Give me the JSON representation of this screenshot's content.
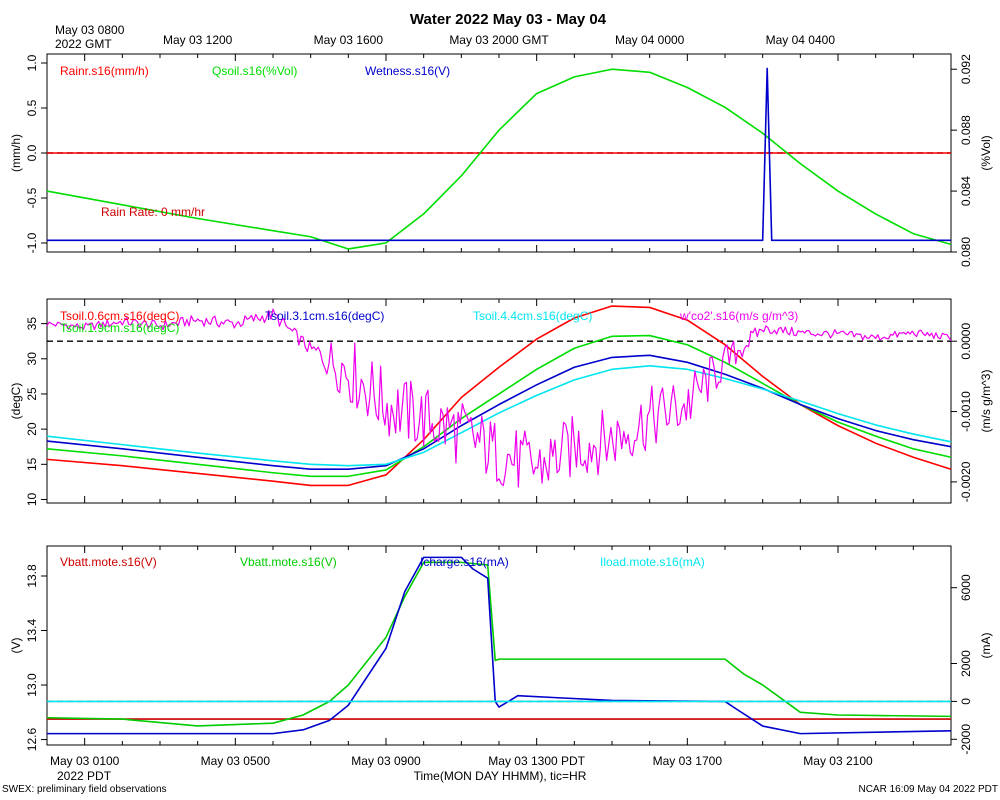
{
  "title": "Water 2022 May 03 - May 04",
  "x_axis": {
    "label": "Time(MON DAY HHMM), tic=HR",
    "top_start_label": [
      "May 03 0800",
      "2022 GMT"
    ],
    "top_ticks": [
      {
        "hour": 4,
        "label": "May 03 1200"
      },
      {
        "hour": 8,
        "label": "May 03 1600"
      },
      {
        "hour": 12,
        "label": "May 03 2000 GMT"
      },
      {
        "hour": 16,
        "label": "May 04 0000"
      },
      {
        "hour": 20,
        "label": "May 04 0400"
      }
    ],
    "bottom_start_label": "2022 PDT",
    "bottom_ticks": [
      {
        "hour": 1,
        "label": "May 03 0100"
      },
      {
        "hour": 5,
        "label": "May 03 0500"
      },
      {
        "hour": 9,
        "label": "May 03 0900"
      },
      {
        "hour": 13,
        "label": "May 03 1300 PDT"
      },
      {
        "hour": 17,
        "label": "May 03 1700"
      },
      {
        "hour": 21,
        "label": "May 03 2100"
      }
    ],
    "range_hours_pdt": [
      0,
      24
    ]
  },
  "footer": {
    "left": "SWEX: preliminary field observations",
    "right": "NCAR 16:09 May 04 2022 PDT"
  },
  "colors": {
    "red": "#ff0000",
    "green": "#00dd00",
    "blue": "#0000cc",
    "cyan": "#00e5ee",
    "magenta": "#ee00ee",
    "dark_red": "#cc0000",
    "mid_green": "#00cc00"
  },
  "chart_data": [
    {
      "type": "line",
      "panel": "top",
      "left_axis": {
        "label": "(mm/h)",
        "ticks": [
          "1.0",
          "0.5",
          "0.0",
          "-0.5",
          "-1.0"
        ],
        "range": [
          -1.1,
          1.1
        ]
      },
      "right_axis": {
        "label": "(%Vol)",
        "ticks": [
          "0.092",
          "0.088",
          "0.084",
          "0.080"
        ],
        "range": [
          0.08,
          0.093
        ]
      },
      "reference_line": 0.0,
      "annotation": "Rain Rate: 0 mm/hr",
      "series": [
        {
          "name": "Rainr.s16(mm/h)",
          "color": "red",
          "axis": "left",
          "points": [
            [
              0,
              0
            ],
            [
              24,
              0
            ]
          ]
        },
        {
          "name": "Qsoil.s16(%Vol)",
          "color": "green",
          "axis": "right",
          "points": [
            [
              0,
              0.084
            ],
            [
              2,
              0.0831
            ],
            [
              4,
              0.0822
            ],
            [
              6,
              0.0814
            ],
            [
              7,
              0.081
            ],
            [
              8,
              0.0802
            ],
            [
              9,
              0.0806
            ],
            [
              10,
              0.0825
            ],
            [
              11,
              0.085
            ],
            [
              12,
              0.088
            ],
            [
              13,
              0.0904
            ],
            [
              14,
              0.0915
            ],
            [
              15,
              0.092
            ],
            [
              16,
              0.0918
            ],
            [
              17,
              0.0908
            ],
            [
              18,
              0.0895
            ],
            [
              19,
              0.0878
            ],
            [
              20,
              0.0858
            ],
            [
              21,
              0.084
            ],
            [
              22,
              0.0825
            ],
            [
              23,
              0.0812
            ],
            [
              24,
              0.0805
            ]
          ]
        },
        {
          "name": "Wetness.s16(V)",
          "color": "blue",
          "axis": "left",
          "points": [
            [
              0,
              -0.97
            ],
            [
              19.0,
              -0.97
            ],
            [
              19.12,
              0.94
            ],
            [
              19.24,
              -0.97
            ],
            [
              24,
              -0.97
            ]
          ]
        }
      ]
    },
    {
      "type": "line",
      "panel": "middle",
      "left_axis": {
        "label": "(degC)",
        "ticks": [
          "35",
          "30",
          "25",
          "20",
          "15",
          "10"
        ],
        "range": [
          9.5,
          38.5
        ]
      },
      "right_axis": {
        "label": "(m/s g/m^3)",
        "ticks": [
          "0.0000",
          "-0.0010",
          "-0.0020"
        ],
        "range": [
          -0.0023,
          0.0006
        ]
      },
      "reference_line_right": 0.0,
      "series": [
        {
          "name": "Tsoil.0.6cm.s16(degC)",
          "color": "red",
          "axis": "left",
          "points": [
            [
              0,
              15.7
            ],
            [
              2,
              14.8
            ],
            [
              4,
              13.7
            ],
            [
              6,
              12.6
            ],
            [
              7,
              12.0
            ],
            [
              8,
              12.0
            ],
            [
              9,
              13.5
            ],
            [
              10,
              18.5
            ],
            [
              11,
              24.5
            ],
            [
              12,
              28.8
            ],
            [
              13,
              32.8
            ],
            [
              14,
              35.8
            ],
            [
              15,
              37.5
            ],
            [
              16,
              37.3
            ],
            [
              17,
              35.5
            ],
            [
              18,
              32.0
            ],
            [
              19,
              27.5
            ],
            [
              20,
              23.5
            ],
            [
              21,
              20.5
            ],
            [
              22,
              18.0
            ],
            [
              23,
              16.0
            ],
            [
              24,
              14.3
            ]
          ]
        },
        {
          "name": "Tsoil.1.9cm.s16(degC)",
          "color": "green",
          "axis": "left",
          "points": [
            [
              0,
              17.2
            ],
            [
              2,
              16.2
            ],
            [
              4,
              15.0
            ],
            [
              6,
              13.8
            ],
            [
              7,
              13.3
            ],
            [
              8,
              13.3
            ],
            [
              9,
              14.2
            ],
            [
              10,
              17.5
            ],
            [
              11,
              21.5
            ],
            [
              12,
              25.0
            ],
            [
              13,
              28.5
            ],
            [
              14,
              31.5
            ],
            [
              15,
              33.2
            ],
            [
              16,
              33.3
            ],
            [
              17,
              32.0
            ],
            [
              18,
              29.5
            ],
            [
              19,
              26.5
            ],
            [
              20,
              23.5
            ],
            [
              21,
              21.0
            ],
            [
              22,
              19.0
            ],
            [
              23,
              17.2
            ],
            [
              24,
              16.0
            ]
          ]
        },
        {
          "name": "Tsoil.3.1cm.s16(degC)",
          "color": "blue",
          "axis": "left",
          "points": [
            [
              0,
              18.3
            ],
            [
              2,
              17.2
            ],
            [
              4,
              16.0
            ],
            [
              6,
              14.8
            ],
            [
              7,
              14.3
            ],
            [
              8,
              14.3
            ],
            [
              9,
              14.8
            ],
            [
              10,
              17.2
            ],
            [
              11,
              20.5
            ],
            [
              12,
              23.5
            ],
            [
              13,
              26.3
            ],
            [
              14,
              28.8
            ],
            [
              15,
              30.2
            ],
            [
              16,
              30.5
            ],
            [
              17,
              29.5
            ],
            [
              18,
              27.8
            ],
            [
              19,
              25.8
            ],
            [
              20,
              23.5
            ],
            [
              21,
              21.5
            ],
            [
              22,
              19.8
            ],
            [
              23,
              18.5
            ],
            [
              24,
              17.5
            ]
          ]
        },
        {
          "name": "Tsoil.4.4cm.s16(degC)",
          "color": "cyan",
          "axis": "left",
          "points": [
            [
              0,
              19.0
            ],
            [
              2,
              17.8
            ],
            [
              4,
              16.6
            ],
            [
              6,
              15.5
            ],
            [
              7,
              15.0
            ],
            [
              8,
              14.8
            ],
            [
              9,
              15.0
            ],
            [
              10,
              16.7
            ],
            [
              11,
              19.5
            ],
            [
              12,
              22.3
            ],
            [
              13,
              24.8
            ],
            [
              14,
              27.0
            ],
            [
              15,
              28.5
            ],
            [
              16,
              29.0
            ],
            [
              17,
              28.5
            ],
            [
              18,
              27.2
            ],
            [
              19,
              25.7
            ],
            [
              20,
              24.0
            ],
            [
              21,
              22.2
            ],
            [
              22,
              20.6
            ],
            [
              23,
              19.3
            ],
            [
              24,
              18.2
            ]
          ]
        },
        {
          "name": "w'co2'.s16(m/s g/m^3)",
          "color": "magenta",
          "axis": "right",
          "points": [
            [
              0,
              0.00025
            ],
            [
              1,
              0.0002
            ],
            [
              2,
              0.00028
            ],
            [
              3,
              0.00022
            ],
            [
              4,
              0.0003
            ],
            [
              5,
              0.00025
            ],
            [
              6,
              0.00038
            ],
            [
              7,
              -0.00012
            ],
            [
              8,
              -0.0004
            ],
            [
              9,
              -0.0009
            ],
            [
              10,
              -0.0011
            ],
            [
              11,
              -0.0013
            ],
            [
              12,
              -0.0016
            ],
            [
              13,
              -0.0018
            ],
            [
              14,
              -0.0015
            ],
            [
              15,
              -0.0014
            ],
            [
              16,
              -0.0011
            ],
            [
              17,
              -0.0009
            ],
            [
              18,
              -0.0003
            ],
            [
              19,
              0.00018
            ],
            [
              20,
              0.00012
            ],
            [
              21,
              0.0001
            ],
            [
              22,
              5e-05
            ],
            [
              23,
              0.00012
            ],
            [
              24,
              5e-05
            ]
          ],
          "noise_envelope": [
            [
              0,
              5e-05
            ],
            [
              7,
              0.0001
            ],
            [
              8,
              0.0005
            ],
            [
              17,
              0.00045
            ],
            [
              19,
              7e-05
            ],
            [
              24,
              5e-05
            ]
          ]
        }
      ]
    },
    {
      "type": "line",
      "panel": "bottom",
      "left_axis": {
        "label": "(V)",
        "ticks": [
          "13.8",
          "13.4",
          "13.0",
          "12.6"
        ],
        "range": [
          12.56,
          14.02
        ]
      },
      "right_axis": {
        "label": "(mA)",
        "ticks": [
          "6000",
          "2000",
          "0",
          "-2000"
        ],
        "range": [
          -2300,
          8200
        ]
      },
      "reference_line_right": 0,
      "series": [
        {
          "name": "Vbatt.mote.s16(V)",
          "color": "dark_red",
          "axis": "left",
          "points": [
            [
              0,
              12.75
            ],
            [
              24,
              12.75
            ]
          ]
        },
        {
          "name": "Vbatt.mote.s16(V)",
          "color": "mid_green",
          "axis": "left",
          "points": [
            [
              0,
              12.76
            ],
            [
              2,
              12.75
            ],
            [
              4,
              12.7
            ],
            [
              6,
              12.72
            ],
            [
              6.8,
              12.78
            ],
            [
              7.5,
              12.88
            ],
            [
              8,
              13.0
            ],
            [
              9,
              13.35
            ],
            [
              9.5,
              13.65
            ],
            [
              10,
              13.9
            ],
            [
              11,
              13.9
            ],
            [
              11.7,
              13.88
            ],
            [
              11.9,
              13.18
            ],
            [
              12,
              13.19
            ],
            [
              16,
              13.19
            ],
            [
              17,
              13.19
            ],
            [
              18,
              13.19
            ],
            [
              18.5,
              13.08
            ],
            [
              19,
              13.0
            ],
            [
              20,
              12.8
            ],
            [
              21,
              12.78
            ],
            [
              24,
              12.77
            ]
          ]
        },
        {
          "name": "Icharge.s16(mA)",
          "color": "blue",
          "axis": "right",
          "points": [
            [
              0,
              -1700
            ],
            [
              5,
              -1700
            ],
            [
              6,
              -1700
            ],
            [
              6.8,
              -1500
            ],
            [
              7.5,
              -1000
            ],
            [
              8,
              -200
            ],
            [
              9,
              2800
            ],
            [
              9.5,
              5800
            ],
            [
              10,
              7600
            ],
            [
              11,
              7600
            ],
            [
              11.3,
              7000
            ],
            [
              11.7,
              6500
            ],
            [
              11.9,
              0
            ],
            [
              12,
              -300
            ],
            [
              12.5,
              300
            ],
            [
              13.5,
              200
            ],
            [
              15,
              50
            ],
            [
              18,
              0
            ],
            [
              18.3,
              -400
            ],
            [
              19,
              -1300
            ],
            [
              20,
              -1700
            ],
            [
              24,
              -1550
            ]
          ]
        },
        {
          "name": "Iload.mote.s16(mA)",
          "color": "cyan",
          "axis": "right",
          "points": [
            [
              0,
              0
            ],
            [
              24,
              0
            ]
          ]
        }
      ]
    }
  ]
}
